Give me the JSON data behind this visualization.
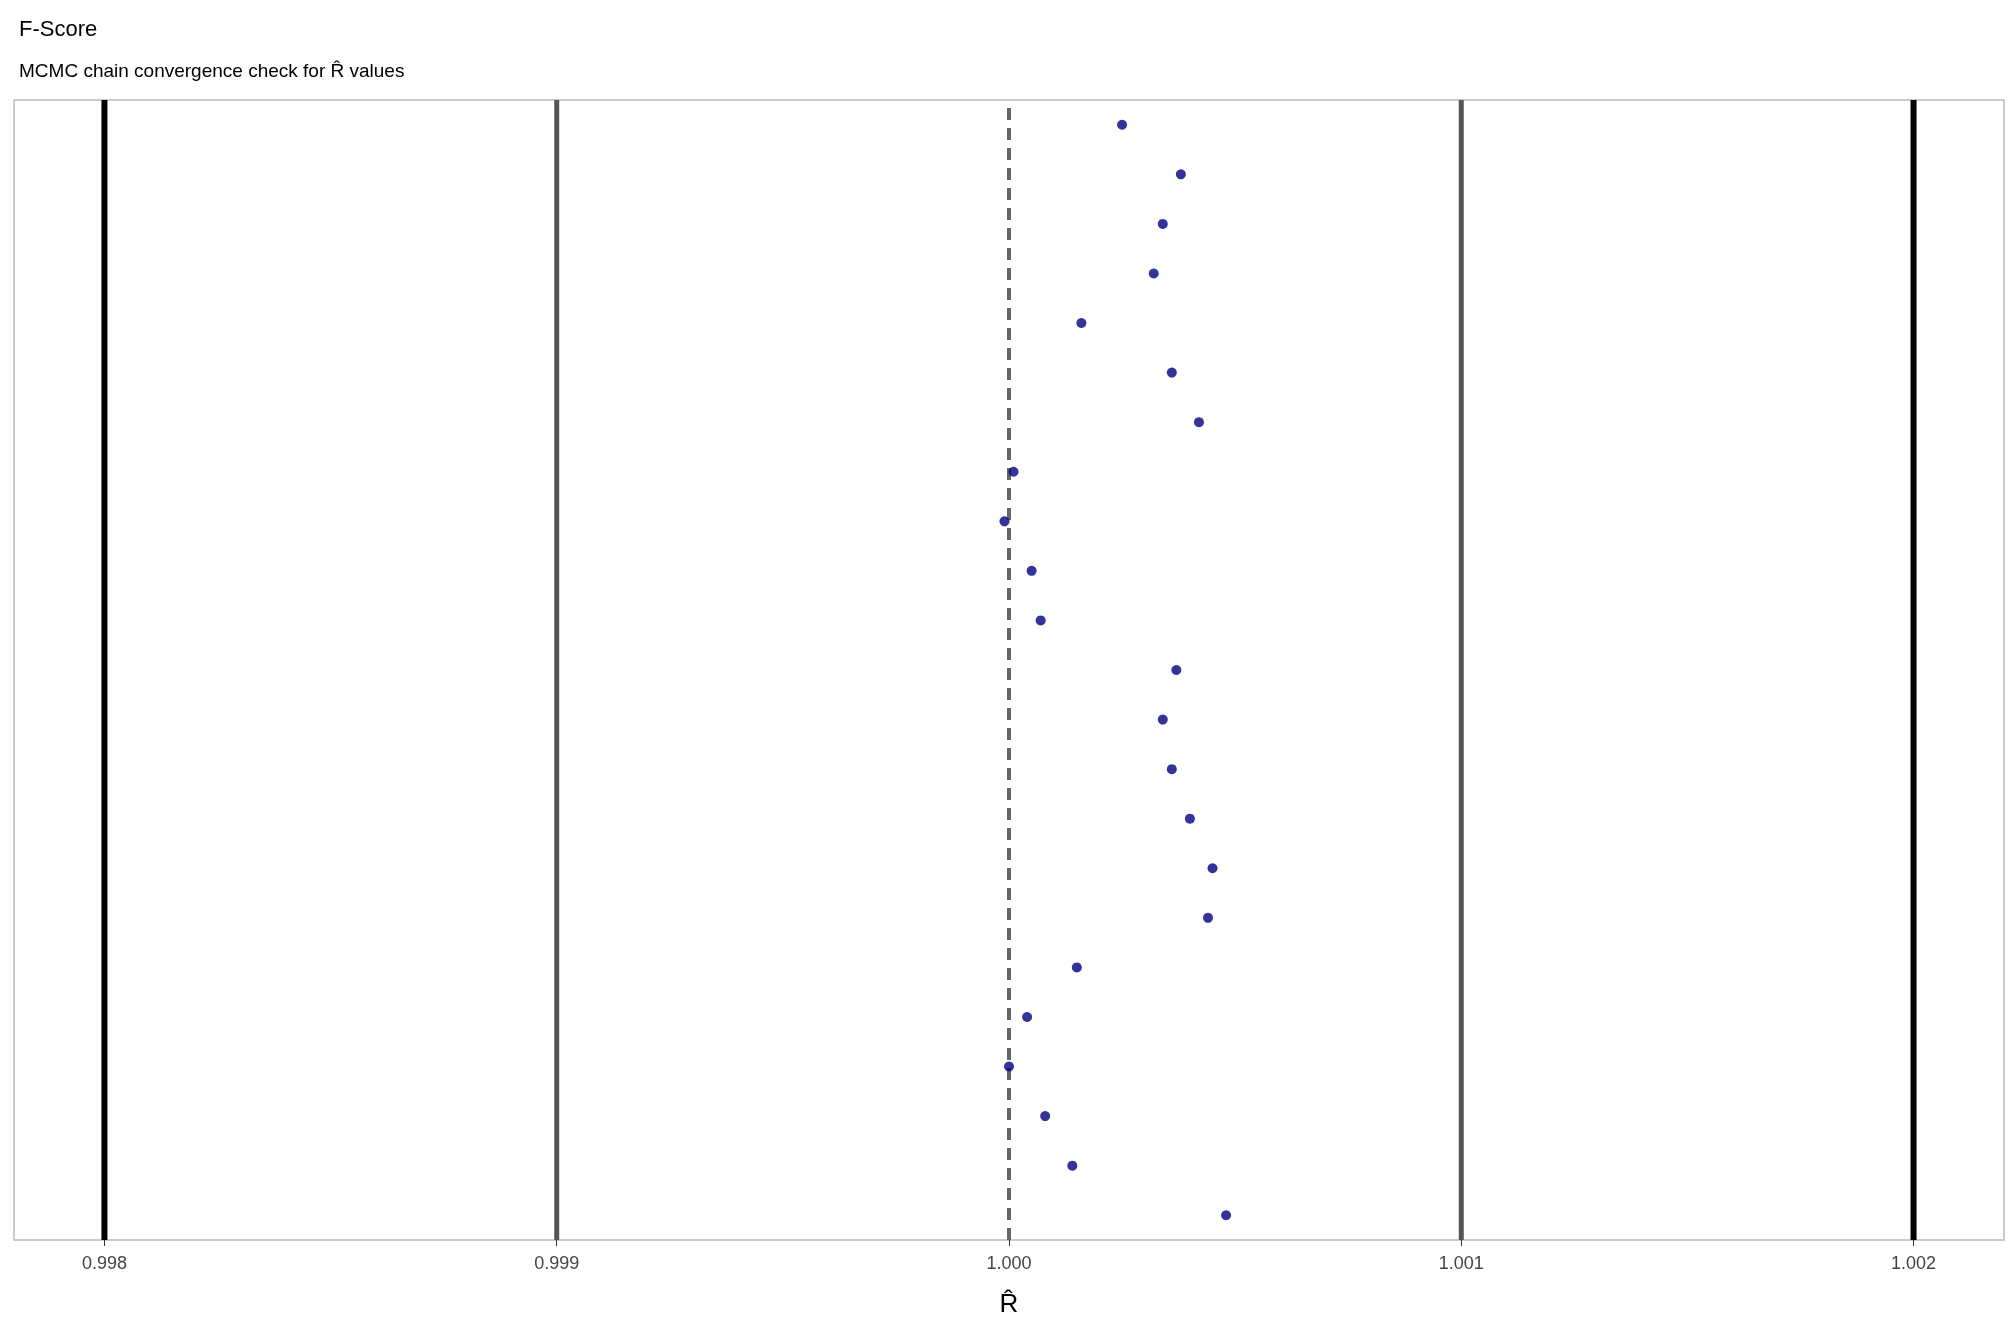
{
  "chart_data": {
    "type": "scatter",
    "orientation": "horizontal",
    "title": "F-Score",
    "subtitle": "MCMC chain convergence check for R̂ values",
    "xlabel": "R̂",
    "categories": [
      null,
      null,
      null,
      null,
      null,
      null,
      null,
      null,
      null,
      null,
      null,
      null,
      null,
      null,
      null,
      null,
      null,
      null,
      null,
      null,
      null,
      null,
      null
    ],
    "values": [
      1.00025,
      1.00038,
      1.00034,
      1.00032,
      1.00016,
      1.00036,
      1.00042,
      1.00001,
      0.99999,
      1.00005,
      1.00007,
      1.00037,
      1.00034,
      1.00036,
      1.0004,
      1.00045,
      1.00044,
      1.00015,
      1.00004,
      1.0,
      1.00008,
      1.00014,
      1.00048
    ],
    "color": "#00007f",
    "marker": "circle",
    "xlim": [
      0.9978,
      1.0022
    ],
    "xticks": [
      0.998,
      0.999,
      {
        "value": 1,
        "label": "1.000"
      },
      1.001,
      1.002
    ],
    "tick_labels": "x",
    "ref_lines": [
      {
        "axis": "x",
        "value": 0.998,
        "color": "#000000",
        "line_style": "solid"
      },
      {
        "axis": "x",
        "value": 0.999,
        "color": "#555555",
        "line_style": "solid"
      },
      {
        "axis": "x",
        "value": 1.0,
        "color": "#666666",
        "line_style": "dashed"
      },
      {
        "axis": "x",
        "value": 1.001,
        "color": "#555555",
        "line_style": "solid"
      },
      {
        "axis": "x",
        "value": 1.002,
        "color": "#000000",
        "line_style": "solid"
      }
    ]
  }
}
